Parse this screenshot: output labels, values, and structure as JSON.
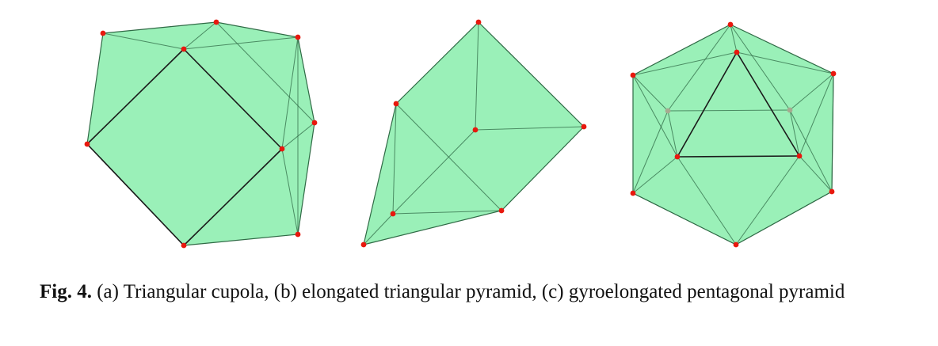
{
  "figure": {
    "fill_color": "#9af0b8",
    "edge_color": "#2f6a45",
    "front_edge_color": "#1a1a1a",
    "vertex_color": "#e8180e",
    "hidden_vertex_color": "#a7aa90",
    "panels": [
      {
        "name": "triangular-cupola",
        "label": "(a)"
      },
      {
        "name": "elongated-triangular-pyramid",
        "label": "(b)"
      },
      {
        "name": "gyroelongated-pentagonal-pyramid",
        "label": "(c)"
      }
    ]
  },
  "caption": {
    "label": "Fig. 4.",
    "text": " (a) Triangular cupola, (b) elongated triangular pyramid, (c) gyroelongated pentagonal pyramid"
  }
}
